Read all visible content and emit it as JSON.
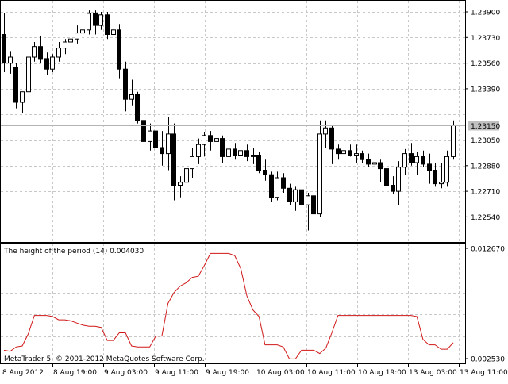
{
  "colors": {
    "background": "#ffffff",
    "grid": "#c8c8c8",
    "frame": "#000000",
    "candle_up_fill": "#ffffff",
    "candle_down_fill": "#000000",
    "candle_stroke": "#000000",
    "indicator_line": "#d01818",
    "current_price_line": "#b4b4b4",
    "current_price_tag": "#c0c0c0",
    "current_price_text": "#ffffff"
  },
  "main_panel": {
    "price_ticks": [
      "1.23900",
      "1.23730",
      "1.23560",
      "1.23390",
      "1.23050",
      "1.22880",
      "1.22710",
      "1.22540"
    ],
    "current_price_label": "1.23150"
  },
  "indicator_panel": {
    "label": "The height of the period (14) 0.004030",
    "ticks": [
      "0.012670",
      "0.002530"
    ]
  },
  "time_axis": {
    "labels": [
      "8 Aug 2012",
      "8 Aug 19:00",
      "9 Aug 03:00",
      "9 Aug 11:00",
      "9 Aug 19:00",
      "10 Aug 03:00",
      "10 Aug 11:00",
      "10 Aug 19:00",
      "13 Aug 03:00",
      "13 Aug 11:00"
    ]
  },
  "copyright": "MetaTrader 5, © 2001-2012 MetaQuotes Software Corp.",
  "chart_data": [
    {
      "type": "candlestick",
      "symbol_timeframe": "",
      "y_ticks": [
        1.2254,
        1.2271,
        1.2288,
        1.2305,
        1.2322,
        1.2339,
        1.2356,
        1.2373,
        1.239
      ],
      "ylim": [
        1.2239,
        1.2398
      ],
      "current_price": 1.2315,
      "grid": true,
      "candles": [
        {
          "o": 1.2375,
          "h": 1.2389,
          "l": 1.235,
          "c": 1.2356
        },
        {
          "o": 1.2356,
          "h": 1.2364,
          "l": 1.2349,
          "c": 1.236
        },
        {
          "o": 1.2353,
          "h": 1.2356,
          "l": 1.2326,
          "c": 1.233
        },
        {
          "o": 1.233,
          "h": 1.2337,
          "l": 1.2323,
          "c": 1.2337
        },
        {
          "o": 1.2337,
          "h": 1.2366,
          "l": 1.2335,
          "c": 1.236
        },
        {
          "o": 1.236,
          "h": 1.237,
          "l": 1.2357,
          "c": 1.2367
        },
        {
          "o": 1.2367,
          "h": 1.2374,
          "l": 1.2356,
          "c": 1.2359
        },
        {
          "o": 1.2359,
          "h": 1.2363,
          "l": 1.2348,
          "c": 1.2352
        },
        {
          "o": 1.2352,
          "h": 1.2362,
          "l": 1.235,
          "c": 1.236
        },
        {
          "o": 1.236,
          "h": 1.237,
          "l": 1.2357,
          "c": 1.2366
        },
        {
          "o": 1.2366,
          "h": 1.2372,
          "l": 1.2362,
          "c": 1.237
        },
        {
          "o": 1.237,
          "h": 1.2378,
          "l": 1.2366,
          "c": 1.2372
        },
        {
          "o": 1.2372,
          "h": 1.2381,
          "l": 1.2369,
          "c": 1.2376
        },
        {
          "o": 1.2376,
          "h": 1.2384,
          "l": 1.2373,
          "c": 1.2378
        },
        {
          "o": 1.2378,
          "h": 1.2391,
          "l": 1.2375,
          "c": 1.2389
        },
        {
          "o": 1.2389,
          "h": 1.2391,
          "l": 1.2375,
          "c": 1.2381
        },
        {
          "o": 1.2381,
          "h": 1.239,
          "l": 1.2378,
          "c": 1.2388
        },
        {
          "o": 1.2388,
          "h": 1.239,
          "l": 1.2372,
          "c": 1.2375
        },
        {
          "o": 1.2375,
          "h": 1.2384,
          "l": 1.237,
          "c": 1.2378
        },
        {
          "o": 1.2378,
          "h": 1.2382,
          "l": 1.2346,
          "c": 1.2352
        },
        {
          "o": 1.2352,
          "h": 1.2357,
          "l": 1.2324,
          "c": 1.2332
        },
        {
          "o": 1.2332,
          "h": 1.2345,
          "l": 1.2328,
          "c": 1.2335
        },
        {
          "o": 1.2335,
          "h": 1.2337,
          "l": 1.2316,
          "c": 1.2318
        },
        {
          "o": 1.2318,
          "h": 1.2324,
          "l": 1.229,
          "c": 1.2304
        },
        {
          "o": 1.2304,
          "h": 1.2316,
          "l": 1.2298,
          "c": 1.2311
        },
        {
          "o": 1.2311,
          "h": 1.2314,
          "l": 1.2296,
          "c": 1.23
        },
        {
          "o": 1.23,
          "h": 1.2311,
          "l": 1.2288,
          "c": 1.2296
        },
        {
          "o": 1.2296,
          "h": 1.232,
          "l": 1.2285,
          "c": 1.2309
        },
        {
          "o": 1.2309,
          "h": 1.2316,
          "l": 1.2265,
          "c": 1.2275
        },
        {
          "o": 1.2275,
          "h": 1.2281,
          "l": 1.2267,
          "c": 1.2277
        },
        {
          "o": 1.2277,
          "h": 1.229,
          "l": 1.227,
          "c": 1.2286
        },
        {
          "o": 1.2286,
          "h": 1.23,
          "l": 1.228,
          "c": 1.2294
        },
        {
          "o": 1.2294,
          "h": 1.2306,
          "l": 1.2289,
          "c": 1.2302
        },
        {
          "o": 1.2302,
          "h": 1.231,
          "l": 1.2294,
          "c": 1.2308
        },
        {
          "o": 1.2308,
          "h": 1.2311,
          "l": 1.2298,
          "c": 1.2304
        },
        {
          "o": 1.2304,
          "h": 1.2309,
          "l": 1.2297,
          "c": 1.2306
        },
        {
          "o": 1.2306,
          "h": 1.2308,
          "l": 1.229,
          "c": 1.2294
        },
        {
          "o": 1.2294,
          "h": 1.2302,
          "l": 1.2288,
          "c": 1.2299
        },
        {
          "o": 1.2299,
          "h": 1.2303,
          "l": 1.2292,
          "c": 1.2295
        },
        {
          "o": 1.2295,
          "h": 1.2301,
          "l": 1.229,
          "c": 1.2298
        },
        {
          "o": 1.2298,
          "h": 1.2302,
          "l": 1.2291,
          "c": 1.2294
        },
        {
          "o": 1.2294,
          "h": 1.23,
          "l": 1.2289,
          "c": 1.2295
        },
        {
          "o": 1.2295,
          "h": 1.2297,
          "l": 1.2283,
          "c": 1.2285
        },
        {
          "o": 1.2285,
          "h": 1.2292,
          "l": 1.2278,
          "c": 1.2282
        },
        {
          "o": 1.2282,
          "h": 1.2284,
          "l": 1.2264,
          "c": 1.2267
        },
        {
          "o": 1.2267,
          "h": 1.2284,
          "l": 1.2265,
          "c": 1.228
        },
        {
          "o": 1.228,
          "h": 1.2283,
          "l": 1.227,
          "c": 1.2273
        },
        {
          "o": 1.2273,
          "h": 1.2276,
          "l": 1.2262,
          "c": 1.2264
        },
        {
          "o": 1.2264,
          "h": 1.2274,
          "l": 1.2258,
          "c": 1.2272
        },
        {
          "o": 1.2272,
          "h": 1.2276,
          "l": 1.226,
          "c": 1.2262
        },
        {
          "o": 1.2262,
          "h": 1.227,
          "l": 1.2245,
          "c": 1.2268
        },
        {
          "o": 1.2268,
          "h": 1.227,
          "l": 1.2239,
          "c": 1.2256
        },
        {
          "o": 1.2256,
          "h": 1.2318,
          "l": 1.2254,
          "c": 1.2309
        },
        {
          "o": 1.2309,
          "h": 1.2318,
          "l": 1.23,
          "c": 1.2313
        },
        {
          "o": 1.2313,
          "h": 1.2315,
          "l": 1.2289,
          "c": 1.2299
        },
        {
          "o": 1.2299,
          "h": 1.2302,
          "l": 1.2292,
          "c": 1.2296
        },
        {
          "o": 1.2296,
          "h": 1.23,
          "l": 1.229,
          "c": 1.2298
        },
        {
          "o": 1.2298,
          "h": 1.2302,
          "l": 1.2294,
          "c": 1.2295
        },
        {
          "o": 1.2295,
          "h": 1.2302,
          "l": 1.229,
          "c": 1.2296
        },
        {
          "o": 1.2296,
          "h": 1.2298,
          "l": 1.229,
          "c": 1.2292
        },
        {
          "o": 1.2292,
          "h": 1.2296,
          "l": 1.2287,
          "c": 1.2289
        },
        {
          "o": 1.2289,
          "h": 1.2293,
          "l": 1.2285,
          "c": 1.229
        },
        {
          "o": 1.229,
          "h": 1.2292,
          "l": 1.2277,
          "c": 1.2286
        },
        {
          "o": 1.2286,
          "h": 1.2287,
          "l": 1.2273,
          "c": 1.2275
        },
        {
          "o": 1.2275,
          "h": 1.2281,
          "l": 1.2269,
          "c": 1.2271
        },
        {
          "o": 1.2271,
          "h": 1.2291,
          "l": 1.2262,
          "c": 1.2287
        },
        {
          "o": 1.2287,
          "h": 1.2299,
          "l": 1.2282,
          "c": 1.2296
        },
        {
          "o": 1.2296,
          "h": 1.2303,
          "l": 1.2288,
          "c": 1.229
        },
        {
          "o": 1.229,
          "h": 1.2297,
          "l": 1.2282,
          "c": 1.2294
        },
        {
          "o": 1.2294,
          "h": 1.2298,
          "l": 1.2287,
          "c": 1.2289
        },
        {
          "o": 1.2289,
          "h": 1.2296,
          "l": 1.2276,
          "c": 1.2285
        },
        {
          "o": 1.2285,
          "h": 1.229,
          "l": 1.2274,
          "c": 1.2276
        },
        {
          "o": 1.2276,
          "h": 1.229,
          "l": 1.2273,
          "c": 1.2277
        },
        {
          "o": 1.2277,
          "h": 1.2298,
          "l": 1.2274,
          "c": 1.2294
        },
        {
          "o": 1.2294,
          "h": 1.2318,
          "l": 1.2292,
          "c": 1.2315
        }
      ]
    },
    {
      "type": "line",
      "series_name": "The height of the period (14)",
      "current_value": 0.00403,
      "y_ticks": [
        0.00253,
        0.01267
      ],
      "ylim": [
        0.00253,
        0.01267
      ],
      "grid": true,
      "values": [
        0.0033,
        0.0032,
        0.0036,
        0.0037,
        0.0048,
        0.0065,
        0.0065,
        0.0065,
        0.0064,
        0.0061,
        0.0061,
        0.006,
        0.0058,
        0.0056,
        0.0055,
        0.0055,
        0.0054,
        0.0042,
        0.0042,
        0.0049,
        0.0049,
        0.0037,
        0.0036,
        0.0036,
        0.0036,
        0.0046,
        0.0046,
        0.0076,
        0.0086,
        0.0092,
        0.0095,
        0.01,
        0.0101,
        0.0111,
        0.0122,
        0.0122,
        0.0122,
        0.0122,
        0.012,
        0.0108,
        0.0083,
        0.007,
        0.0064,
        0.0038,
        0.0038,
        0.0038,
        0.0036,
        0.0025,
        0.0025,
        0.0033,
        0.0033,
        0.0033,
        0.003,
        0.0035,
        0.0049,
        0.0065,
        0.0065,
        0.0065,
        0.0065,
        0.0065,
        0.0065,
        0.0065,
        0.0065,
        0.0065,
        0.0065,
        0.0065,
        0.0065,
        0.0065,
        0.0064,
        0.0043,
        0.0038,
        0.0038,
        0.0034,
        0.0034,
        0.004
      ]
    }
  ]
}
